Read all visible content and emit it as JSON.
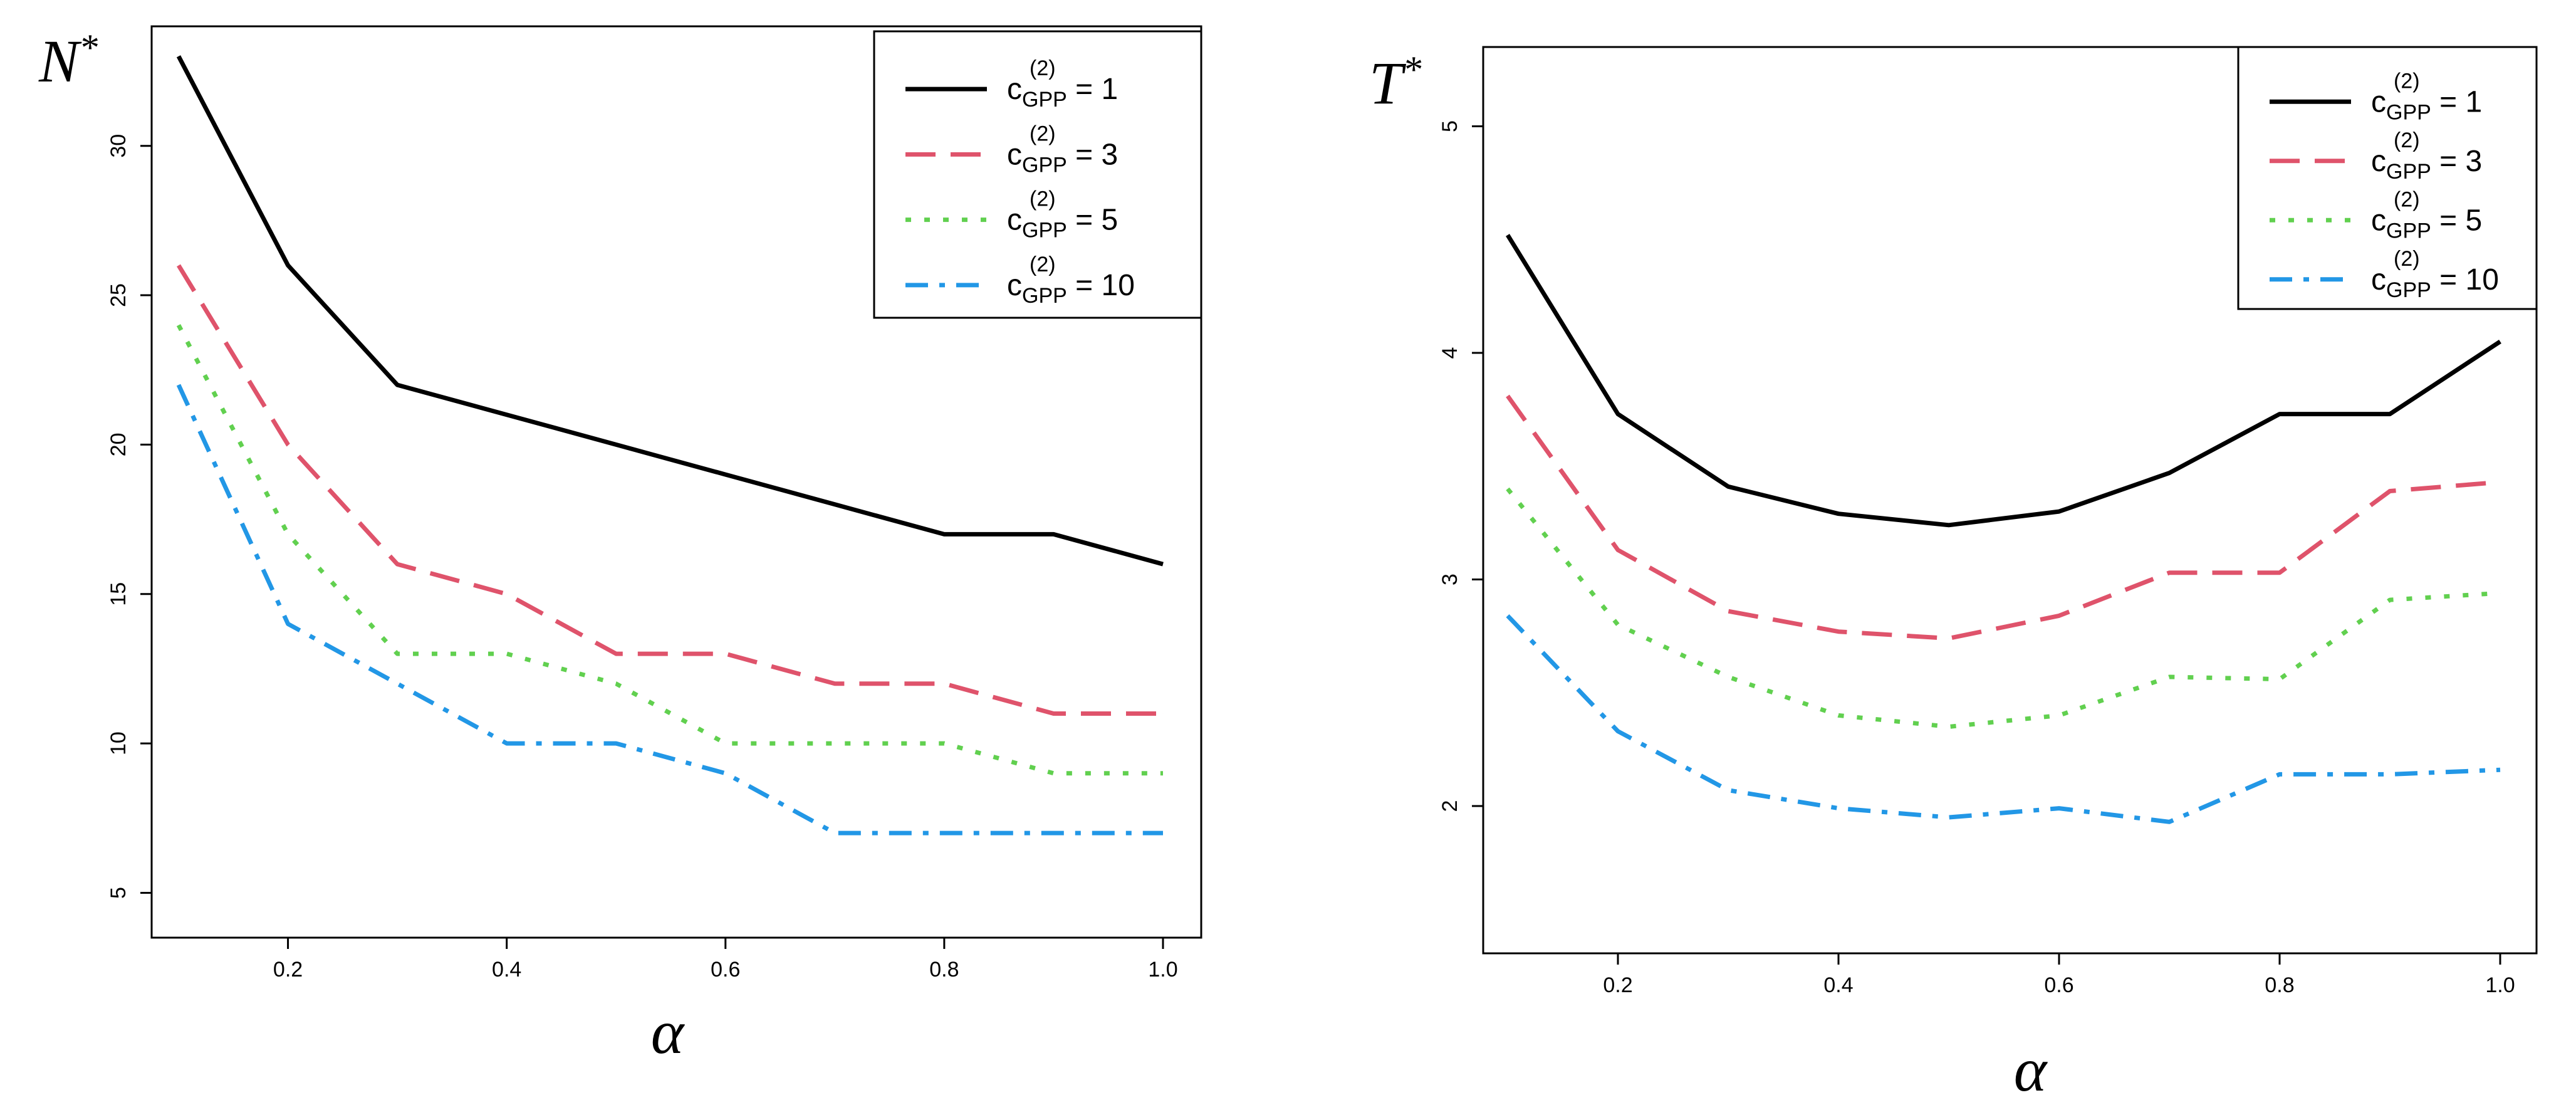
{
  "chart_data": [
    {
      "type": "line",
      "ylabel": "N",
      "ylabel_sup": "*",
      "xlabel": "α",
      "xlim": [
        0.1,
        1.0
      ],
      "ylim": [
        3.5,
        34.0
      ],
      "xticks": [
        0.2,
        0.4,
        0.6,
        0.8,
        1.0
      ],
      "xtick_labels": [
        "0.2",
        "0.4",
        "0.6",
        "0.8",
        "1.0"
      ],
      "yticks": [
        5,
        10,
        15,
        20,
        25,
        30
      ],
      "ytick_labels": [
        "5",
        "10",
        "15",
        "20",
        "25",
        "30"
      ],
      "legend_position": "top-right",
      "x": [
        0.1,
        0.2,
        0.3,
        0.4,
        0.5,
        0.6,
        0.7,
        0.8,
        0.9,
        1.0
      ],
      "series": [
        {
          "name": "c_GPP^(2) = 1",
          "legend_c": "c",
          "legend_sup": "(2)",
          "legend_sub": "GPP",
          "legend_val": " = 1",
          "color": "#000000",
          "dash": "solid",
          "values": [
            33,
            26,
            22,
            21,
            20,
            19,
            18,
            17,
            17,
            16
          ]
        },
        {
          "name": "c_GPP^(2) = 3",
          "legend_c": "c",
          "legend_sup": "(2)",
          "legend_sub": "GPP",
          "legend_val": " = 3",
          "color": "#df536b",
          "dash": "dashed",
          "values": [
            26,
            20,
            16,
            15,
            13,
            13,
            12,
            12,
            11,
            11
          ]
        },
        {
          "name": "c_GPP^(2) = 5",
          "legend_c": "c",
          "legend_sup": "(2)",
          "legend_sub": "GPP",
          "legend_val": " = 5",
          "color": "#61d04f",
          "dash": "dotted",
          "values": [
            24,
            17,
            13,
            13,
            12,
            10,
            10,
            10,
            9,
            9
          ]
        },
        {
          "name": "c_GPP^(2) = 10",
          "legend_c": "c",
          "legend_sup": "(2)",
          "legend_sub": "GPP",
          "legend_val": " = 10",
          "color": "#2297e6",
          "dash": "dotdash",
          "values": [
            22,
            14,
            12,
            10,
            10,
            9,
            7,
            7,
            7,
            7
          ]
        }
      ]
    },
    {
      "type": "line",
      "ylabel": "T",
      "ylabel_sup": "*",
      "xlabel": "α",
      "xlim": [
        0.1,
        1.0
      ],
      "ylim": [
        1.35,
        5.35
      ],
      "xticks": [
        0.2,
        0.4,
        0.6,
        0.8,
        1.0
      ],
      "xtick_labels": [
        "0.2",
        "0.4",
        "0.6",
        "0.8",
        "1.0"
      ],
      "yticks": [
        2,
        3,
        4,
        5
      ],
      "ytick_labels": [
        "2",
        "3",
        "4",
        "5"
      ],
      "legend_position": "top-right",
      "x": [
        0.1,
        0.2,
        0.3,
        0.4,
        0.5,
        0.6,
        0.7,
        0.8,
        0.9,
        1.0
      ],
      "series": [
        {
          "name": "c_GPP^(2) = 1",
          "legend_c": "c",
          "legend_sup": "(2)",
          "legend_sub": "GPP",
          "legend_val": " = 1",
          "color": "#000000",
          "dash": "solid",
          "values": [
            4.52,
            3.73,
            3.41,
            3.29,
            3.24,
            3.3,
            3.47,
            3.73,
            3.73,
            4.05
          ]
        },
        {
          "name": "c_GPP^(2) = 3",
          "legend_c": "c",
          "legend_sup": "(2)",
          "legend_sub": "GPP",
          "legend_val": " = 3",
          "color": "#df536b",
          "dash": "dashed",
          "values": [
            3.81,
            3.13,
            2.86,
            2.77,
            2.74,
            2.84,
            3.03,
            3.03,
            3.39,
            3.43
          ]
        },
        {
          "name": "c_GPP^(2) = 5",
          "legend_c": "c",
          "legend_sup": "(2)",
          "legend_sub": "GPP",
          "legend_val": " = 5",
          "color": "#61d04f",
          "dash": "dotted",
          "values": [
            3.4,
            2.8,
            2.57,
            2.4,
            2.35,
            2.4,
            2.57,
            2.56,
            2.91,
            2.94
          ]
        },
        {
          "name": "c_GPP^(2) = 10",
          "legend_c": "c",
          "legend_sup": "(2)",
          "legend_sub": "GPP",
          "legend_val": " = 10",
          "color": "#2297e6",
          "dash": "dotdash",
          "values": [
            2.84,
            2.33,
            2.07,
            1.99,
            1.95,
            1.99,
            1.93,
            2.14,
            2.14,
            2.16
          ]
        }
      ]
    }
  ]
}
